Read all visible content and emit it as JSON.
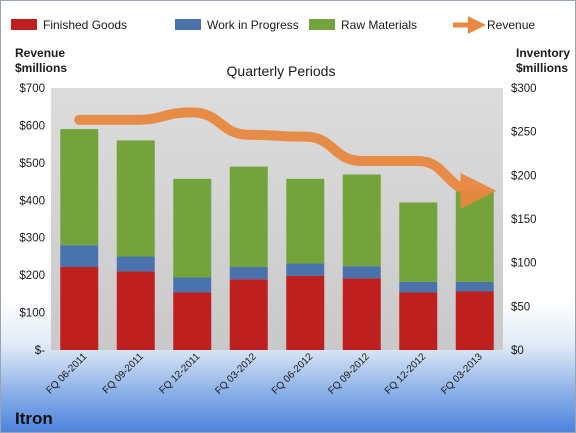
{
  "chart_data": {
    "type": "bar",
    "subtitle": "Quarterly Periods",
    "brand": "Itron",
    "categories": [
      "FQ 06-2011",
      "FQ 09-2011",
      "FQ 12-2011",
      "FQ 03-2012",
      "FQ 06-2012",
      "FQ 09-2012",
      "FQ 12-2012",
      "FQ 03-2013"
    ],
    "y_left": {
      "title_line1": "Revenue",
      "title_line2": "$millions",
      "ylim": [
        0,
        700
      ],
      "ticks": [
        0,
        100,
        200,
        300,
        400,
        500,
        600,
        700
      ],
      "tick_labels": [
        "$-",
        "$100",
        "$200",
        "$300",
        "$400",
        "$500",
        "$600",
        "$700"
      ]
    },
    "y_right": {
      "title_line1": "Inventory",
      "title_line2": "$millions",
      "ylim": [
        0,
        300
      ],
      "ticks": [
        0,
        50,
        100,
        150,
        200,
        250,
        300
      ],
      "tick_labels": [
        "$0",
        "$50",
        "$100",
        "$150",
        "$200",
        "$250",
        "$300"
      ]
    },
    "stacked": true,
    "series": [
      {
        "name": "Finished Goods",
        "axis": "right",
        "color": "#be1f1f",
        "values": [
          95,
          90,
          66,
          81,
          85,
          82,
          66,
          67
        ]
      },
      {
        "name": "Work in Progress",
        "axis": "right",
        "color": "#4a72ac",
        "values": [
          25,
          17,
          17,
          14,
          14,
          14,
          12,
          11
        ]
      },
      {
        "name": "Raw Materials",
        "axis": "right",
        "color": "#74a33c",
        "values": [
          133,
          133,
          113,
          115,
          97,
          105,
          91,
          104
        ]
      },
      {
        "name": "Revenue",
        "axis": "left",
        "type": "line",
        "color": "#e8883f",
        "values": [
          615,
          615,
          635,
          575,
          570,
          505,
          505,
          425
        ]
      }
    ],
    "grid": false,
    "legend_position": "top"
  }
}
